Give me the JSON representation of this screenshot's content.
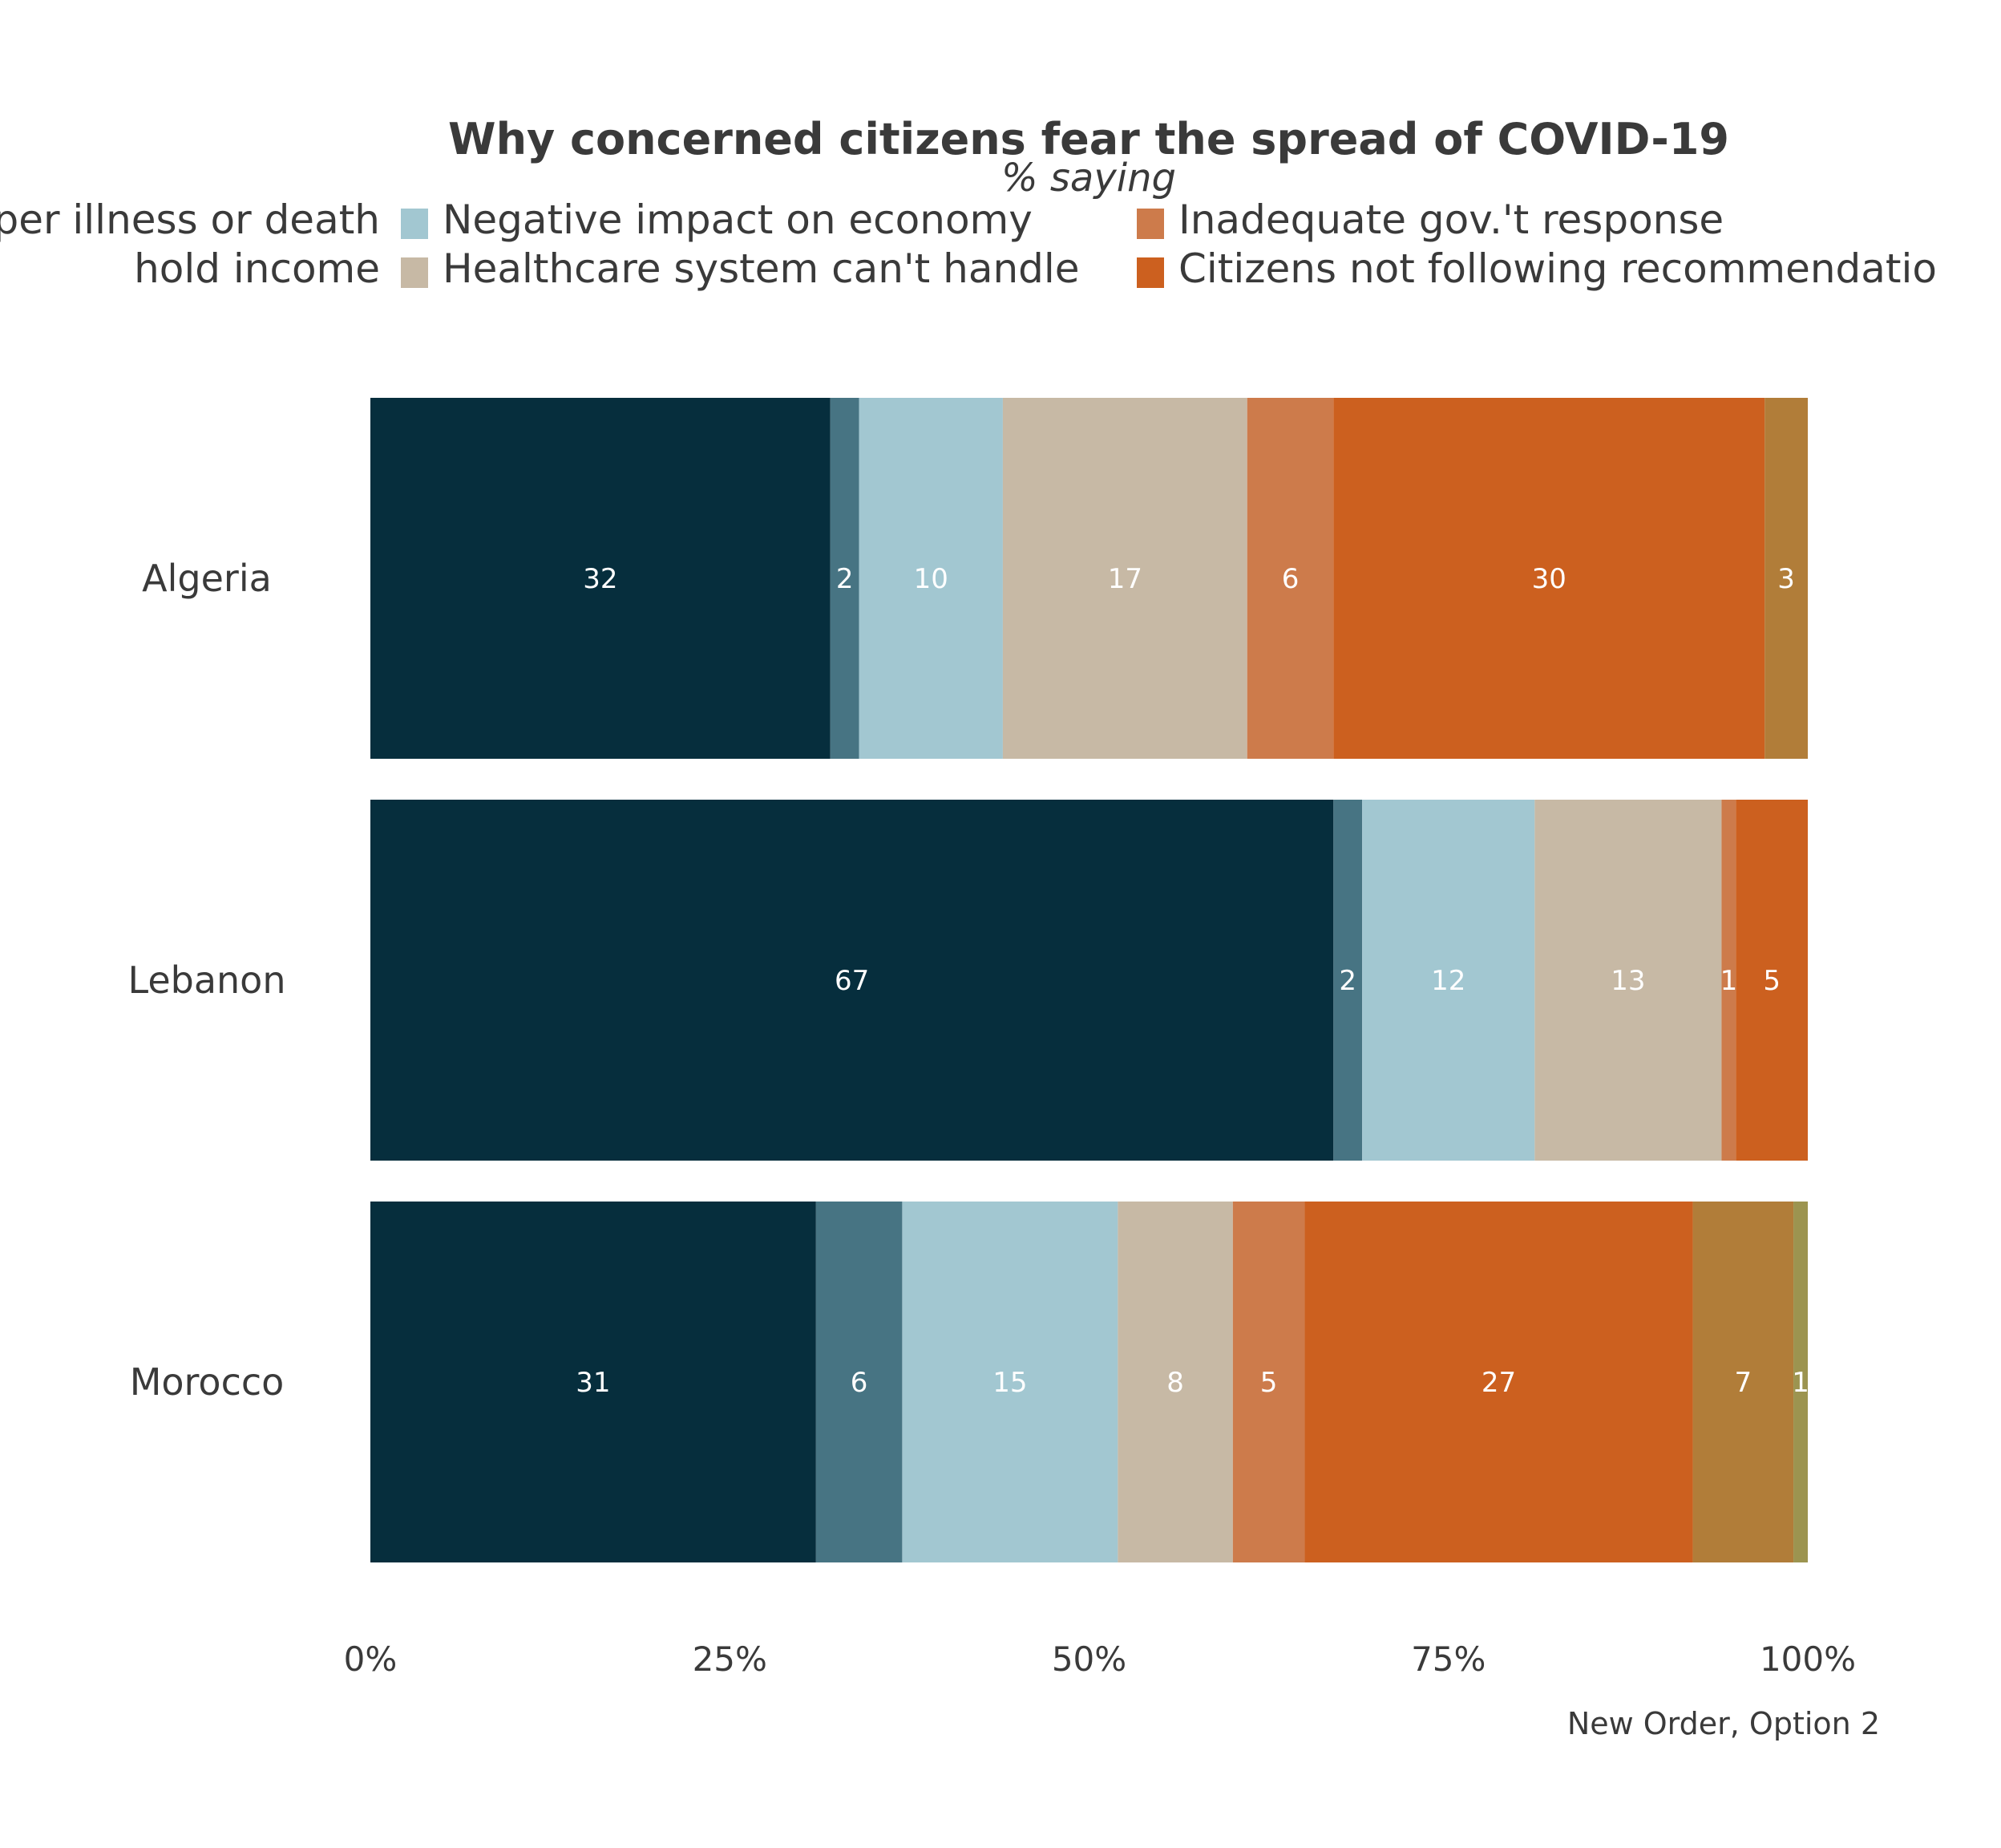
{
  "chart_data": {
    "type": "bar",
    "orientation": "horizontal",
    "stacked": true,
    "title": "Why concerned citizens fear the spread of COVID-19",
    "subtitle": "% saying",
    "caption": "New Order, Option 2",
    "categories": [
      "Algeria",
      "Lebanon",
      "Morocco"
    ],
    "xlim": [
      0,
      100
    ],
    "x_ticks": [
      "0%",
      "25%",
      "50%",
      "75%",
      "100%"
    ],
    "x_tick_values": [
      0,
      25,
      50,
      75,
      100
    ],
    "legend_position": "top",
    "legend_columns": 3,
    "grid": false,
    "series": [
      {
        "name": "per illness or death",
        "color": "#062e3d",
        "values": [
          32,
          67,
          31
        ]
      },
      {
        "name": "hold income",
        "color": "#477483",
        "values": [
          2,
          2,
          6
        ]
      },
      {
        "name": "Negative impact on economy",
        "color": "#a2c7d1",
        "values": [
          10,
          12,
          15
        ]
      },
      {
        "name": "Healthcare system can't handle",
        "color": "#c7b9a5",
        "values": [
          17,
          13,
          8
        ]
      },
      {
        "name": "Inadequate gov.'t response",
        "color": "#cd7b4b",
        "values": [
          6,
          1,
          5
        ]
      },
      {
        "name": "Citizens not following recommendatio",
        "color": "#cc601f",
        "values": [
          30,
          5,
          27
        ]
      },
      {
        "name": "",
        "color": "#b17d39",
        "values": [
          3,
          0,
          7
        ]
      },
      {
        "name": "",
        "color": "#9c9450",
        "values": [
          0,
          0,
          1
        ]
      }
    ],
    "data_labels": [
      [
        "32",
        "2",
        "10",
        "17",
        "6",
        "30",
        "3",
        ""
      ],
      [
        "67",
        "2",
        "12",
        "13",
        "1",
        "5",
        "",
        ""
      ],
      [
        "31",
        "6",
        "15",
        "8",
        "5",
        "27",
        "7",
        "1"
      ]
    ]
  }
}
